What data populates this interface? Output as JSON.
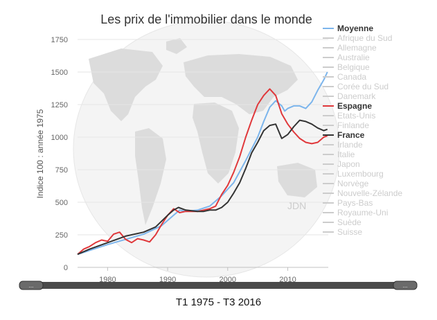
{
  "chart_data": {
    "type": "line",
    "title": "Les prix de l'immobilier dans le monde",
    "ylabel": "Indice 100 : année 1975",
    "xlabel": "",
    "xlim": [
      1975,
      2016.75
    ],
    "ylim": [
      0,
      1750
    ],
    "x_ticks": [
      1980,
      1990,
      2000,
      2010
    ],
    "y_ticks": [
      0,
      250,
      500,
      750,
      1000,
      1250,
      1500,
      1750
    ],
    "watermark": "JDN",
    "grid": "horizontal",
    "legend_position": "right",
    "legend": [
      {
        "name": "Moyenne",
        "active": true,
        "color": "#7cb5ec"
      },
      {
        "name": "Afrique du Sud",
        "active": false
      },
      {
        "name": "Allemagne",
        "active": false
      },
      {
        "name": "Australie",
        "active": false
      },
      {
        "name": "Belgique",
        "active": false
      },
      {
        "name": "Canada",
        "active": false
      },
      {
        "name": "Corée du Sud",
        "active": false
      },
      {
        "name": "Danemark",
        "active": false
      },
      {
        "name": "Espagne",
        "active": true,
        "color": "#e0383b"
      },
      {
        "name": "Etats-Unis",
        "active": false
      },
      {
        "name": "Finlande",
        "active": false
      },
      {
        "name": "France",
        "active": true,
        "color": "#333333"
      },
      {
        "name": "Irlande",
        "active": false
      },
      {
        "name": "Italie",
        "active": false
      },
      {
        "name": "Japon",
        "active": false
      },
      {
        "name": "Luxembourg",
        "active": false
      },
      {
        "name": "Norvège",
        "active": false
      },
      {
        "name": "Nouvelle-Zélande",
        "active": false
      },
      {
        "name": "Pays-Bas",
        "active": false
      },
      {
        "name": "Royaume-Uni",
        "active": false
      },
      {
        "name": "Suède",
        "active": false
      },
      {
        "name": "Suisse",
        "active": false
      }
    ],
    "series": [
      {
        "name": "Moyenne",
        "color": "#7cb5ec",
        "points": [
          [
            1975,
            100
          ],
          [
            1977,
            130
          ],
          [
            1980,
            175
          ],
          [
            1983,
            215
          ],
          [
            1986,
            255
          ],
          [
            1989,
            320
          ],
          [
            1991,
            400
          ],
          [
            1992,
            440
          ],
          [
            1993,
            430
          ],
          [
            1995,
            440
          ],
          [
            1997,
            470
          ],
          [
            1999,
            550
          ],
          [
            2001,
            650
          ],
          [
            2003,
            820
          ],
          [
            2005,
            1000
          ],
          [
            2006,
            1120
          ],
          [
            2007,
            1230
          ],
          [
            2008,
            1280
          ],
          [
            2009,
            1240
          ],
          [
            2009.5,
            1200
          ],
          [
            2010,
            1220
          ],
          [
            2011,
            1240
          ],
          [
            2012,
            1240
          ],
          [
            2013,
            1220
          ],
          [
            2014,
            1270
          ],
          [
            2015,
            1360
          ],
          [
            2016,
            1440
          ],
          [
            2016.6,
            1500
          ]
        ]
      },
      {
        "name": "Espagne",
        "color": "#e0383b",
        "points": [
          [
            1975,
            100
          ],
          [
            1976,
            140
          ],
          [
            1977,
            160
          ],
          [
            1978,
            190
          ],
          [
            1979,
            210
          ],
          [
            1980,
            200
          ],
          [
            1981,
            255
          ],
          [
            1982,
            270
          ],
          [
            1983,
            215
          ],
          [
            1984,
            190
          ],
          [
            1985,
            220
          ],
          [
            1986,
            210
          ],
          [
            1987,
            195
          ],
          [
            1988,
            250
          ],
          [
            1989,
            330
          ],
          [
            1990,
            400
          ],
          [
            1991,
            450
          ],
          [
            1992,
            420
          ],
          [
            1993,
            430
          ],
          [
            1994,
            430
          ],
          [
            1995,
            430
          ],
          [
            1996,
            440
          ],
          [
            1997,
            450
          ],
          [
            1998,
            470
          ],
          [
            1999,
            560
          ],
          [
            2000,
            630
          ],
          [
            2001,
            730
          ],
          [
            2002,
            850
          ],
          [
            2003,
            1000
          ],
          [
            2004,
            1130
          ],
          [
            2005,
            1250
          ],
          [
            2006,
            1320
          ],
          [
            2007,
            1370
          ],
          [
            2008,
            1320
          ],
          [
            2009,
            1180
          ],
          [
            2010,
            1100
          ],
          [
            2011,
            1040
          ],
          [
            2012,
            990
          ],
          [
            2013,
            960
          ],
          [
            2014,
            950
          ],
          [
            2015,
            960
          ],
          [
            2016,
            1000
          ],
          [
            2016.6,
            1010
          ]
        ]
      },
      {
        "name": "France",
        "color": "#333333",
        "points": [
          [
            1975,
            100
          ],
          [
            1977,
            140
          ],
          [
            1980,
            190
          ],
          [
            1983,
            240
          ],
          [
            1986,
            270
          ],
          [
            1988,
            310
          ],
          [
            1990,
            400
          ],
          [
            1991,
            440
          ],
          [
            1991.8,
            460
          ],
          [
            1993,
            440
          ],
          [
            1995,
            430
          ],
          [
            1996,
            430
          ],
          [
            1997,
            440
          ],
          [
            1998,
            440
          ],
          [
            1999,
            460
          ],
          [
            2000,
            500
          ],
          [
            2001,
            570
          ],
          [
            2002,
            650
          ],
          [
            2003,
            760
          ],
          [
            2004,
            880
          ],
          [
            2005,
            960
          ],
          [
            2006,
            1050
          ],
          [
            2007,
            1090
          ],
          [
            2008,
            1100
          ],
          [
            2009,
            990
          ],
          [
            2010,
            1020
          ],
          [
            2011,
            1080
          ],
          [
            2012,
            1130
          ],
          [
            2013,
            1120
          ],
          [
            2014,
            1100
          ],
          [
            2015,
            1070
          ],
          [
            2016,
            1050
          ],
          [
            2016.6,
            1060
          ]
        ]
      }
    ]
  },
  "footer": {
    "range_label": "T1 1975 - T3 2016",
    "slider_left_handle": "...",
    "slider_right_handle": "..."
  }
}
